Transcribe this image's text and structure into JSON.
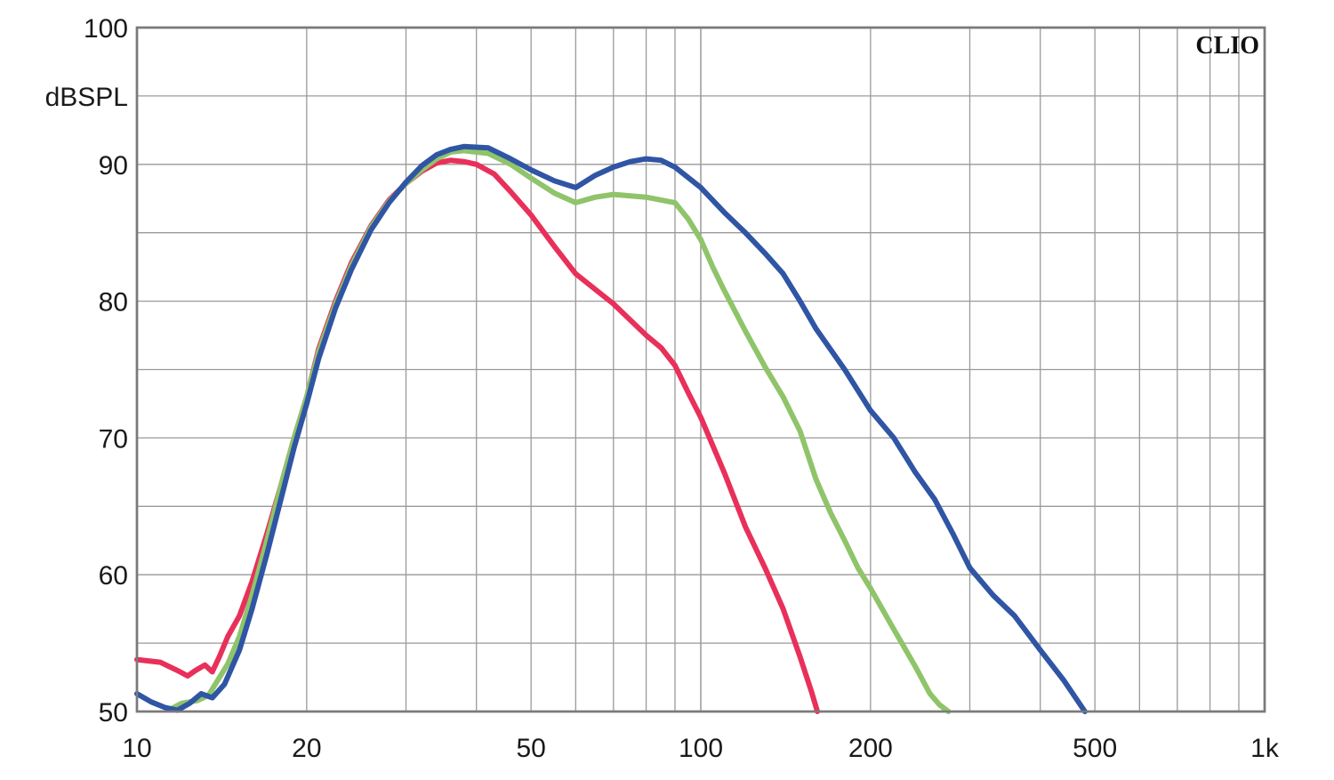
{
  "chart_data": {
    "type": "line",
    "brand": "CLIO",
    "ylabel": "dBSPL",
    "x_scale": "log",
    "xlim": [
      10,
      1000
    ],
    "ylim": [
      50,
      100
    ],
    "grid": true,
    "x_tick_labels": [
      {
        "value": 10,
        "label": "10"
      },
      {
        "value": 20,
        "label": "20"
      },
      {
        "value": 50,
        "label": "50"
      },
      {
        "value": 100,
        "label": "100"
      },
      {
        "value": 200,
        "label": "200"
      },
      {
        "value": 500,
        "label": "500"
      },
      {
        "value": 1000,
        "label": "1k"
      }
    ],
    "y_tick_labels": [
      {
        "value": 50,
        "label": "50"
      },
      {
        "value": 60,
        "label": "60"
      },
      {
        "value": 70,
        "label": "70"
      },
      {
        "value": 80,
        "label": "80"
      },
      {
        "value": 90,
        "label": "90"
      },
      {
        "value": 100,
        "label": "100"
      }
    ],
    "series": [
      {
        "color": "#e8305a",
        "points": [
          [
            10,
            53.8
          ],
          [
            11,
            53.6
          ],
          [
            11.8,
            53.0
          ],
          [
            12.3,
            52.6
          ],
          [
            12.7,
            53.0
          ],
          [
            13.2,
            53.4
          ],
          [
            13.6,
            52.9
          ],
          [
            14,
            54.0
          ],
          [
            14.5,
            55.5
          ],
          [
            15.2,
            57.0
          ],
          [
            16,
            59.5
          ],
          [
            17,
            63.0
          ],
          [
            18,
            66.5
          ],
          [
            19,
            70.0
          ],
          [
            20,
            73.0
          ],
          [
            21,
            76.5
          ],
          [
            22.5,
            80.0
          ],
          [
            24,
            82.8
          ],
          [
            26,
            85.5
          ],
          [
            28,
            87.4
          ],
          [
            30,
            88.6
          ],
          [
            32,
            89.5
          ],
          [
            34,
            90.1
          ],
          [
            36,
            90.3
          ],
          [
            38,
            90.2
          ],
          [
            40,
            90.0
          ],
          [
            43,
            89.3
          ],
          [
            46,
            88.0
          ],
          [
            50,
            86.3
          ],
          [
            55,
            84.0
          ],
          [
            60,
            82.0
          ],
          [
            70,
            79.8
          ],
          [
            80,
            77.5
          ],
          [
            85,
            76.6
          ],
          [
            90,
            75.3
          ],
          [
            95,
            73.3
          ],
          [
            100,
            71.5
          ],
          [
            110,
            67.5
          ],
          [
            120,
            63.5
          ],
          [
            130,
            60.5
          ],
          [
            140,
            57.5
          ],
          [
            150,
            54.0
          ],
          [
            157,
            51.5
          ],
          [
            161,
            50.0
          ]
        ]
      },
      {
        "color": "#8fc46a",
        "points": [
          [
            11.5,
            50.2
          ],
          [
            12,
            50.6
          ],
          [
            12.8,
            50.8
          ],
          [
            13.4,
            51.2
          ],
          [
            14.5,
            53.5
          ],
          [
            15.2,
            55.5
          ],
          [
            16,
            58.5
          ],
          [
            17,
            62.5
          ],
          [
            18,
            66.5
          ],
          [
            19,
            70.0
          ],
          [
            20,
            73.0
          ],
          [
            21,
            76.3
          ],
          [
            22.5,
            79.8
          ],
          [
            24,
            82.6
          ],
          [
            26,
            85.4
          ],
          [
            28,
            87.3
          ],
          [
            30,
            88.6
          ],
          [
            32,
            89.6
          ],
          [
            34,
            90.4
          ],
          [
            36,
            90.9
          ],
          [
            38,
            91.0
          ],
          [
            42,
            90.8
          ],
          [
            46,
            90.0
          ],
          [
            50,
            89.0
          ],
          [
            55,
            87.9
          ],
          [
            60,
            87.2
          ],
          [
            65,
            87.6
          ],
          [
            70,
            87.8
          ],
          [
            80,
            87.6
          ],
          [
            90,
            87.2
          ],
          [
            95,
            86.0
          ],
          [
            100,
            84.5
          ],
          [
            105,
            82.5
          ],
          [
            110,
            80.8
          ],
          [
            120,
            77.8
          ],
          [
            130,
            75.2
          ],
          [
            140,
            73.0
          ],
          [
            150,
            70.5
          ],
          [
            160,
            67.0
          ],
          [
            170,
            64.5
          ],
          [
            180,
            62.5
          ],
          [
            190,
            60.5
          ],
          [
            200,
            59.0
          ],
          [
            220,
            56.0
          ],
          [
            240,
            53.3
          ],
          [
            255,
            51.3
          ],
          [
            265,
            50.5
          ],
          [
            275,
            50.0
          ]
        ]
      },
      {
        "color": "#2f55a4",
        "points": [
          [
            10,
            51.3
          ],
          [
            10.6,
            50.7
          ],
          [
            11.2,
            50.3
          ],
          [
            11.8,
            50.1
          ],
          [
            12.4,
            50.6
          ],
          [
            13,
            51.3
          ],
          [
            13.6,
            51.0
          ],
          [
            14.3,
            52.0
          ],
          [
            15.2,
            54.5
          ],
          [
            16,
            57.5
          ],
          [
            17,
            61.5
          ],
          [
            18,
            65.5
          ],
          [
            19,
            69.3
          ],
          [
            20,
            72.5
          ],
          [
            21,
            75.8
          ],
          [
            22.5,
            79.5
          ],
          [
            24,
            82.3
          ],
          [
            26,
            85.2
          ],
          [
            28,
            87.2
          ],
          [
            30,
            88.7
          ],
          [
            32,
            89.9
          ],
          [
            34,
            90.7
          ],
          [
            36,
            91.1
          ],
          [
            38,
            91.3
          ],
          [
            42,
            91.2
          ],
          [
            46,
            90.4
          ],
          [
            50,
            89.6
          ],
          [
            55,
            88.8
          ],
          [
            60,
            88.3
          ],
          [
            65,
            89.2
          ],
          [
            70,
            89.8
          ],
          [
            75,
            90.2
          ],
          [
            80,
            90.4
          ],
          [
            85,
            90.3
          ],
          [
            90,
            89.8
          ],
          [
            100,
            88.3
          ],
          [
            110,
            86.5
          ],
          [
            120,
            85.0
          ],
          [
            130,
            83.5
          ],
          [
            140,
            82.0
          ],
          [
            150,
            80.0
          ],
          [
            160,
            78.0
          ],
          [
            180,
            75.0
          ],
          [
            200,
            72.0
          ],
          [
            220,
            70.0
          ],
          [
            240,
            67.5
          ],
          [
            260,
            65.5
          ],
          [
            280,
            63.0
          ],
          [
            300,
            60.5
          ],
          [
            330,
            58.5
          ],
          [
            360,
            57.0
          ],
          [
            400,
            54.5
          ],
          [
            440,
            52.3
          ],
          [
            480,
            50.0
          ]
        ]
      }
    ]
  }
}
